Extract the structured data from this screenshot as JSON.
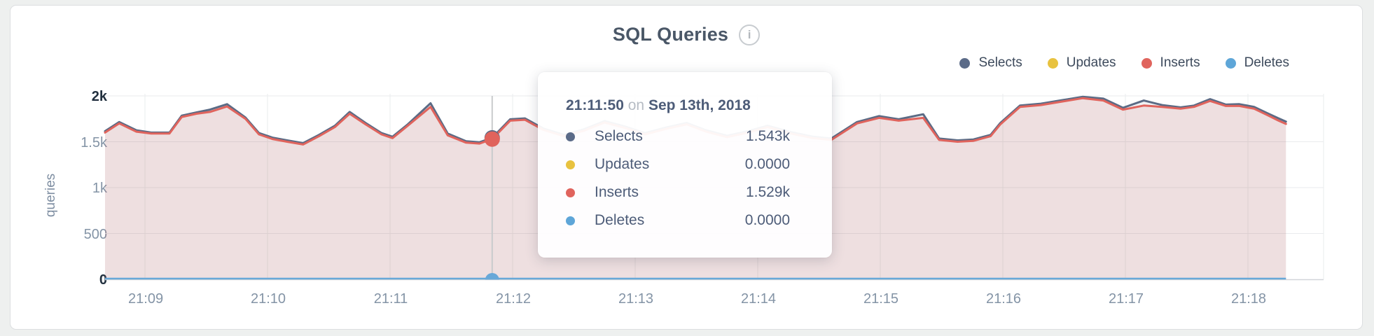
{
  "header": {
    "title": "SQL Queries",
    "info_glyph": "i"
  },
  "legend": {
    "items": [
      {
        "label": "Selects",
        "color": "#5b6b88"
      },
      {
        "label": "Updates",
        "color": "#e8c23f"
      },
      {
        "label": "Inserts",
        "color": "#e0645d"
      },
      {
        "label": "Deletes",
        "color": "#5ea6d8"
      }
    ]
  },
  "tooltip": {
    "time": "21:11:50",
    "on_word": "on",
    "date": "Sep 13th, 2018",
    "rows": [
      {
        "label": "Selects",
        "value": "1.543k",
        "color": "#5b6b88"
      },
      {
        "label": "Updates",
        "value": "0.0000",
        "color": "#e8c23f"
      },
      {
        "label": "Inserts",
        "value": "1.529k",
        "color": "#e0645d"
      },
      {
        "label": "Deletes",
        "value": "0.0000",
        "color": "#5ea6d8"
      }
    ]
  },
  "axes": {
    "y_label": "queries",
    "y_ticks": [
      {
        "label": "2k",
        "value": 2000,
        "strong": true
      },
      {
        "label": "1.5k",
        "value": 1500,
        "strong": false
      },
      {
        "label": "1k",
        "value": 1000,
        "strong": false
      },
      {
        "label": "500",
        "value": 500,
        "strong": false
      },
      {
        "label": "0",
        "value": 0,
        "strong": true
      }
    ],
    "x_ticks": [
      {
        "label": "21:09",
        "t": 1
      },
      {
        "label": "21:10",
        "t": 2
      },
      {
        "label": "21:11",
        "t": 3
      },
      {
        "label": "21:12",
        "t": 4
      },
      {
        "label": "21:13",
        "t": 5
      },
      {
        "label": "21:14",
        "t": 6
      },
      {
        "label": "21:15",
        "t": 7
      },
      {
        "label": "21:16",
        "t": 8
      },
      {
        "label": "21:17",
        "t": 9
      },
      {
        "label": "21:18",
        "t": 10
      }
    ]
  },
  "chart_data": {
    "type": "area",
    "title": "SQL Queries",
    "ylabel": "queries",
    "ylim": [
      0,
      2000
    ],
    "y_tick_labels": [
      "2k",
      "1.5k",
      "1k",
      "500",
      "0"
    ],
    "x_tick_labels": [
      "21:09",
      "21:10",
      "21:11",
      "21:12",
      "21:13",
      "21:14",
      "21:15",
      "21:16",
      "21:17",
      "21:18"
    ],
    "grid": true,
    "legend_position": "top-right",
    "x_minutes_after_2108": [
      0.674,
      0.79,
      0.93,
      1.05,
      1.2,
      1.3,
      1.42,
      1.53,
      1.67,
      1.82,
      1.93,
      2.04,
      2.16,
      2.29,
      2.42,
      2.55,
      2.67,
      2.8,
      2.93,
      3.02,
      3.14,
      3.33,
      3.47,
      3.62,
      3.73,
      3.833,
      3.98,
      4.1,
      4.25,
      4.42,
      4.58,
      4.75,
      4.92,
      5.08,
      5.25,
      5.42,
      5.58,
      5.75,
      5.92,
      6.08,
      6.27,
      6.45,
      6.6,
      6.81,
      6.99,
      7.15,
      7.35,
      7.48,
      7.63,
      7.76,
      7.9,
      7.98,
      8.14,
      8.31,
      8.49,
      8.65,
      8.82,
      8.98,
      9.15,
      9.3,
      9.45,
      9.56,
      9.69,
      9.82,
      9.93,
      10.05,
      10.16,
      10.25,
      10.31
    ],
    "series": [
      {
        "name": "Selects",
        "color": "#5b6b85",
        "values": [
          1615,
          1715,
          1625,
          1600,
          1600,
          1785,
          1820,
          1850,
          1910,
          1765,
          1595,
          1545,
          1515,
          1485,
          1575,
          1675,
          1825,
          1705,
          1595,
          1555,
          1685,
          1920,
          1590,
          1505,
          1495,
          1543,
          1745,
          1755,
          1645,
          1575,
          1635,
          1725,
          1665,
          1595,
          1655,
          1705,
          1625,
          1565,
          1615,
          1675,
          1605,
          1555,
          1535,
          1715,
          1780,
          1745,
          1800,
          1535,
          1515,
          1525,
          1575,
          1705,
          1895,
          1915,
          1955,
          1990,
          1970,
          1870,
          1950,
          1900,
          1875,
          1895,
          1965,
          1905,
          1910,
          1880,
          1810,
          1755,
          1720
        ]
      },
      {
        "name": "Updates",
        "color": "#e8c23f",
        "constant": 0
      },
      {
        "name": "Inserts",
        "color": "#e0645d",
        "values": [
          1600,
          1700,
          1610,
          1590,
          1590,
          1770,
          1805,
          1825,
          1885,
          1750,
          1580,
          1530,
          1500,
          1470,
          1560,
          1660,
          1805,
          1690,
          1580,
          1540,
          1670,
          1880,
          1570,
          1490,
          1480,
          1529,
          1730,
          1740,
          1630,
          1560,
          1620,
          1710,
          1650,
          1580,
          1640,
          1690,
          1610,
          1550,
          1600,
          1660,
          1590,
          1540,
          1520,
          1700,
          1760,
          1730,
          1760,
          1520,
          1500,
          1510,
          1560,
          1690,
          1880,
          1900,
          1940,
          1975,
          1950,
          1850,
          1895,
          1880,
          1860,
          1880,
          1945,
          1890,
          1890,
          1860,
          1790,
          1730,
          1695
        ]
      },
      {
        "name": "Deletes",
        "color": "#68a8d8",
        "constant": 0
      }
    ],
    "selection": {
      "t_minutes": 3.833,
      "time": "21:11:50",
      "date": "Sep 13th, 2018",
      "values": {
        "Selects": 1543,
        "Updates": 0,
        "Inserts": 1529,
        "Deletes": 0
      }
    }
  }
}
